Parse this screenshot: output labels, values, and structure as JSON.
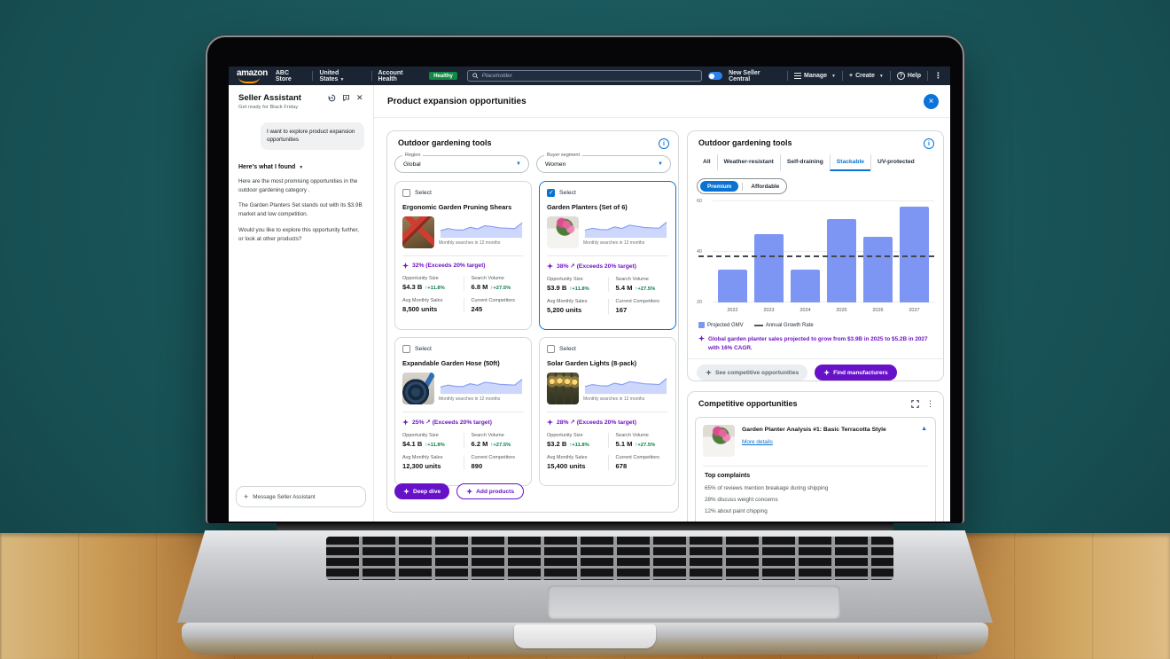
{
  "colors": {
    "accent_blue": "#0972d3",
    "accent_purple": "#6712c9",
    "insight_purple": "#7016c4",
    "positive_green": "#067d46",
    "bar_blue": "#7d95f3",
    "healthy_green": "#0e8a42",
    "amazon_orange": "#ff9900",
    "nav_bg": "#1a2433"
  },
  "topnav": {
    "logo_text": "amazon",
    "store_name": "ABC Store",
    "country_selector": "United States",
    "account_health_label": "Account Health",
    "account_health_status": "Healthy",
    "search_placeholder": "Placeholder",
    "new_seller_central_label": "New Seller Central",
    "manage_label": "Manage",
    "create_label": "Create",
    "help_label": "Help"
  },
  "assistant": {
    "title": "Seller Assistant",
    "subtitle": "Get ready for Black Friday",
    "user_message": "I want to explore product expansion opportunities",
    "found_heading": "Here's what I found",
    "paragraphs": [
      "Here are the most promising opportunities in the outdoor gardening category .",
      "The Garden Planters Set stands out with its $3.9B market and low competition.",
      "Would you like to explore this opportunity further, or look at other products?"
    ],
    "input_placeholder": "Message Seller Assistant"
  },
  "modal": {
    "title": "Product expansion opportunities"
  },
  "left_panel": {
    "title": "Outdoor gardening tools",
    "region_label": "Region",
    "region_value": "Global",
    "segment_label": "Buyer segment",
    "segment_value": "Women",
    "select_label": "Select",
    "sparkline_caption": "Monthly searches in 12 months",
    "stat_labels": {
      "opportunity": "Opportunity Size",
      "search": "Search Volume",
      "sales": "Avg Monthly Sales",
      "competitors": "Current Competitors"
    },
    "products": [
      {
        "name": "Ergonomic Garden Pruning Shears",
        "selected": false,
        "growth": "32% (Exceeds 20% target)",
        "opportunity_size": "$4.3 B",
        "opportunity_delta": "+11.8%",
        "search_volume": "6.8 M",
        "search_delta": "+27.5%",
        "monthly_sales": "8,500 units",
        "competitors": "245",
        "sparkline": [
          38,
          48,
          42,
          40,
          55,
          47,
          63,
          58,
          52,
          50,
          48,
          78
        ]
      },
      {
        "name": "Garden Planters (Set of 6)",
        "selected": true,
        "growth": "38% ↗ (Exceeds 20% target)",
        "opportunity_size": "$3.9 B",
        "opportunity_delta": "+11.8%",
        "search_volume": "5.4 M",
        "search_delta": "+27.5%",
        "monthly_sales": "5,200 units",
        "competitors": "167",
        "sparkline": [
          40,
          50,
          44,
          42,
          57,
          49,
          66,
          60,
          54,
          52,
          50,
          82
        ]
      },
      {
        "name": "Expandable Garden Hose (50ft)",
        "selected": false,
        "growth": "25% ↗ (Exceeds 20% target)",
        "opportunity_size": "$4.1 B",
        "opportunity_delta": "+11.8%",
        "search_volume": "6.2 M",
        "search_delta": "+27.5%",
        "monthly_sales": "12,300 units",
        "competitors": "890",
        "sparkline": [
          36,
          46,
          40,
          38,
          53,
          45,
          61,
          56,
          50,
          48,
          46,
          76
        ]
      },
      {
        "name": "Solar Garden Lights (8-pack)",
        "selected": false,
        "growth": "28% ↗ (Exceeds 20% target)",
        "opportunity_size": "$3.2 B",
        "opportunity_delta": "+11.8%",
        "search_volume": "5.1 M",
        "search_delta": "+27.5%",
        "monthly_sales": "15,400 units",
        "competitors": "678",
        "sparkline": [
          39,
          49,
          43,
          41,
          56,
          48,
          64,
          59,
          53,
          51,
          49,
          80
        ]
      }
    ],
    "deep_dive_label": "Deep dive",
    "add_products_label": "Add products"
  },
  "right_panel": {
    "title": "Outdoor gardening tools",
    "tabs": [
      "All",
      "Weather-resistant",
      "Self-draining",
      "Stackable",
      "UV-protected"
    ],
    "active_tab": "Stackable",
    "pills": [
      "Premium",
      "Affordable"
    ],
    "active_pill": "Premium",
    "insight": "Global garden planter sales projected to grow from $3.9B in 2025 to $5.2B in 2027 with 16% CAGR.",
    "secondary_action": "See competitive opportunities",
    "primary_action": "Find manufacturers"
  },
  "chart_data": {
    "type": "bar",
    "title": "",
    "xlabel": "",
    "ylabel": "",
    "categories": [
      "2022",
      "2023",
      "2024",
      "2025",
      "2026",
      "2027"
    ],
    "series": [
      {
        "name": "Projected GMV",
        "type": "bar",
        "values": [
          33,
          47,
          33,
          53,
          46,
          58
        ]
      },
      {
        "name": "Annual Growth Rate",
        "type": "dashed-line",
        "values": [
          38,
          38,
          38,
          38,
          38,
          38
        ]
      }
    ],
    "ylim": [
      20,
      60
    ],
    "yticks": [
      20,
      40,
      60
    ],
    "grid": true,
    "legend_position": "bottom"
  },
  "competitive": {
    "title": "Competitive opportunities",
    "item_title": "Garden Planter Analysis #1: Basic Terracotta Style",
    "details_link": "More details",
    "complaints_heading": "Top complaints",
    "complaints": [
      "65% of reviews mention breakage during shipping",
      "28% discuss weight concerns",
      "12% about paint chipping"
    ]
  }
}
